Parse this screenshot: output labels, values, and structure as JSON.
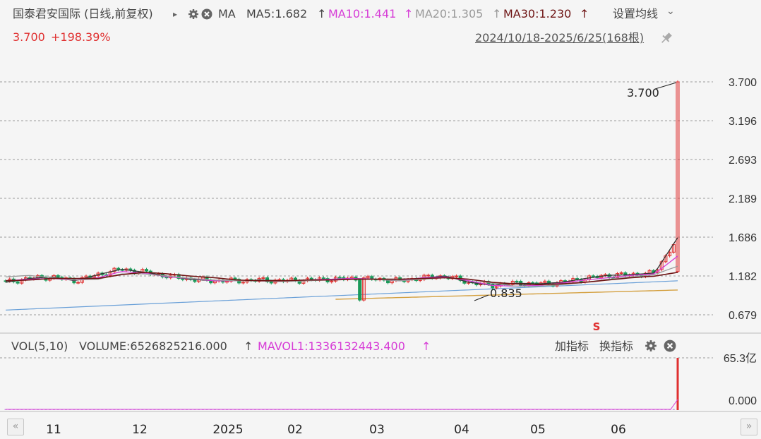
{
  "header": {
    "title": "国泰君安国际 (日线,前复权)",
    "expand_arrow": "▸",
    "ma_label": "MA",
    "ma_items": [
      {
        "text": "MA5:1.682",
        "color": "#333333"
      },
      {
        "text": "MA10:1.441",
        "color": "#d63bd6"
      },
      {
        "text": "MA20:1.305",
        "color": "#9a9a9a"
      },
      {
        "text": "MA30:1.230",
        "color": "#6e1414"
      }
    ],
    "up_arrow": "↑",
    "settings_label": "设置均线",
    "settings_arrow": "⌄",
    "price": "3.700",
    "change": "+198.39%",
    "date_range": "2024/10/18-2025/6/25(168根)"
  },
  "volume_header": {
    "vol_label": "VOL(5,10)",
    "volume": "VOLUME:6526825216.000",
    "mavol": "MAVOL1:1336132443.400",
    "up_arrow": "↑",
    "add_indicator": "加指标",
    "switch_indicator": "换指标"
  },
  "colors": {
    "up": "#e03030",
    "down": "#1a9a5a",
    "ma5": "#333333",
    "ma10": "#d63bd6",
    "ma20": "#9a9a9a",
    "ma30": "#6e1414",
    "ma60": "#6aa0d8",
    "ma120": "#d4a040",
    "grid": "#9a9a9a"
  },
  "icons": {
    "gear": "gear-icon",
    "close": "close-icon",
    "pin": "pin-icon",
    "prev": "double-chevron-left-icon",
    "next": "double-chevron-right-icon"
  },
  "chart_data": {
    "type": "candlestick",
    "price_axis_ticks": [
      "3.700",
      "3.196",
      "2.693",
      "2.189",
      "1.686",
      "1.182",
      "0.679"
    ],
    "price_ylim": [
      0.62,
      3.78
    ],
    "volume_axis_ticks": [
      "65.3亿",
      "0.000"
    ],
    "x_tick_labels": [
      "11",
      "12",
      "2025",
      "02",
      "03",
      "04",
      "05",
      "06"
    ],
    "annotations": {
      "high": "3.700",
      "low": "0.835",
      "marker": "S"
    },
    "series": [
      {
        "name": "MA5",
        "values": [
          1.1,
          1.15,
          1.17,
          1.12,
          1.2,
          1.27,
          1.23,
          1.18,
          1.14,
          1.12,
          1.12,
          1.13,
          1.12,
          1.13,
          1.14,
          1.15,
          1.14,
          1.12,
          1.16,
          1.18,
          1.1,
          1.06,
          1.09,
          1.08,
          1.1,
          1.15,
          1.19,
          1.2,
          1.22,
          1.68
        ]
      },
      {
        "name": "MA10",
        "values": [
          1.12,
          1.14,
          1.15,
          1.13,
          1.16,
          1.24,
          1.22,
          1.17,
          1.15,
          1.12,
          1.12,
          1.12,
          1.11,
          1.13,
          1.14,
          1.15,
          1.14,
          1.12,
          1.16,
          1.17,
          1.12,
          1.06,
          1.05,
          1.06,
          1.09,
          1.13,
          1.16,
          1.19,
          1.21,
          1.44
        ]
      },
      {
        "name": "MA20",
        "values": [
          1.17,
          1.19,
          1.16,
          1.13,
          1.14,
          1.21,
          1.21,
          1.18,
          1.15,
          1.13,
          1.12,
          1.12,
          1.11,
          1.12,
          1.13,
          1.14,
          1.14,
          1.12,
          1.14,
          1.16,
          1.14,
          1.09,
          1.05,
          1.05,
          1.07,
          1.1,
          1.14,
          1.17,
          1.2,
          1.31
        ]
      },
      {
        "name": "MA30",
        "values": [
          1.12,
          1.13,
          1.15,
          1.15,
          1.15,
          1.2,
          1.23,
          1.21,
          1.18,
          1.16,
          1.13,
          1.12,
          1.12,
          1.13,
          1.13,
          1.14,
          1.14,
          1.14,
          1.15,
          1.16,
          1.14,
          1.1,
          1.08,
          1.07,
          1.08,
          1.1,
          1.13,
          1.16,
          1.18,
          1.23
        ]
      }
    ]
  }
}
